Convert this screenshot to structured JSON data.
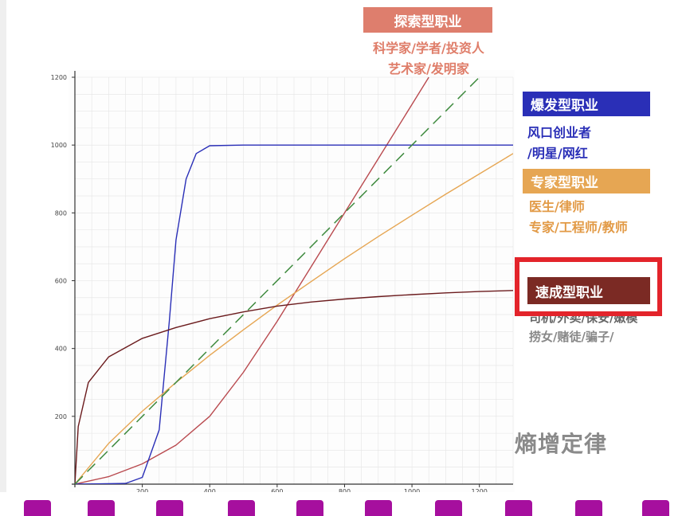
{
  "chart_data": {
    "type": "line",
    "title": "",
    "xlabel": "",
    "ylabel": "",
    "xlim": [
      0,
      1300
    ],
    "ylim": [
      0,
      1200
    ],
    "x_ticks": [
      200,
      400,
      600,
      800,
      1000,
      1200
    ],
    "y_ticks": [
      200,
      400,
      600,
      800,
      1000,
      1200
    ],
    "grid": true,
    "series": [
      {
        "name": "探索型职业",
        "color": "#b94a4f",
        "x": [
          0,
          100,
          200,
          300,
          400,
          500,
          600,
          700,
          800,
          900,
          1000,
          1050
        ],
        "y": [
          0,
          22,
          60,
          115,
          200,
          330,
          480,
          640,
          800,
          960,
          1120,
          1200
        ]
      },
      {
        "name": "爆发型职业",
        "color": "#2a2fb7",
        "x": [
          0,
          150,
          200,
          250,
          280,
          300,
          330,
          360,
          400,
          500,
          700,
          1000,
          1300
        ],
        "y": [
          0,
          2,
          20,
          160,
          480,
          720,
          900,
          975,
          998,
          1000,
          1000,
          1000,
          1000
        ]
      },
      {
        "name": "专家型职业",
        "color": "#e6a653",
        "x": [
          0,
          100,
          200,
          300,
          400,
          500,
          600,
          700,
          800,
          900,
          1000,
          1100,
          1200,
          1300
        ],
        "y": [
          0,
          120,
          215,
          300,
          380,
          455,
          528,
          597,
          665,
          730,
          793,
          855,
          915,
          975
        ]
      },
      {
        "name": "速成型职业",
        "color": "#6b1b1d",
        "x": [
          0,
          10,
          40,
          100,
          200,
          300,
          400,
          500,
          600,
          700,
          800,
          900,
          1000,
          1100,
          1200,
          1300
        ],
        "y": [
          0,
          170,
          300,
          375,
          430,
          462,
          488,
          508,
          525,
          537,
          546,
          553,
          559,
          564,
          568,
          571
        ]
      },
      {
        "name": "熵增定律",
        "color": "#3e8a3e",
        "dashed": true,
        "x": [
          0,
          1200
        ],
        "y": [
          0,
          1200
        ]
      }
    ]
  },
  "labels": {
    "explore": {
      "tag": "探索型职业",
      "line1": "科学家/学者/投资人",
      "line2": "艺术家/发明家",
      "color": "#de7e6d"
    },
    "burst": {
      "tag": "爆发型职业",
      "line1": "风口创业者",
      "line2": "/明星/网红",
      "color": "#2a2fb7"
    },
    "expert": {
      "tag": "专家型职业",
      "line1": "医生/律师",
      "line2": "专家/工程师/教师",
      "color": "#e6a653"
    },
    "quick": {
      "tag": "速成型职业",
      "line1": "司机/外卖/保安/嫩模",
      "line2": "捞女/赌徒/骗子/",
      "color": "#7b2a24"
    },
    "entropy": "熵增定律"
  },
  "colors": {
    "highlight": "#e3242b",
    "axis": "#333333",
    "grid": "#e4e4e4",
    "subtitle_band": "#a60f9e"
  }
}
